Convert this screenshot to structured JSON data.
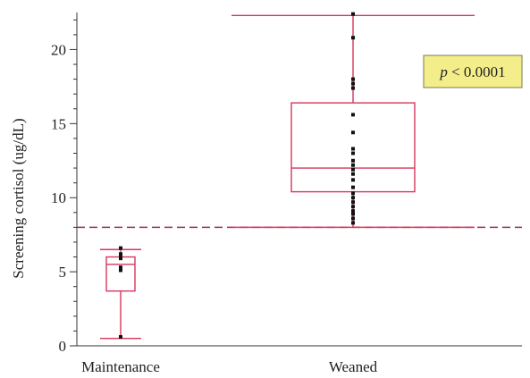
{
  "chart_data": {
    "type": "box",
    "title": "",
    "xlabel": "",
    "ylabel": "Screening cortisol (ug/dL)",
    "ylim": [
      0,
      22.5
    ],
    "yticks": [
      0,
      5,
      10,
      15,
      20
    ],
    "categories": [
      "Maintenance",
      "Weaned"
    ],
    "boxes": [
      {
        "category": "Maintenance",
        "whisker_low": 0.5,
        "q1": 3.7,
        "median": 5.5,
        "q3": 6.0,
        "whisker_high": 6.5,
        "points": [
          0.6,
          5.1,
          5.3,
          5.9,
          6.0,
          6.2,
          6.6
        ]
      },
      {
        "category": "Weaned",
        "whisker_low": 8.0,
        "q1": 10.4,
        "median": 12.0,
        "q3": 16.4,
        "whisker_high": 22.3,
        "points": [
          8.3,
          8.6,
          8.9,
          9.1,
          9.4,
          9.7,
          10.0,
          10.3,
          10.7,
          11.2,
          11.6,
          11.9,
          12.2,
          12.5,
          13.0,
          13.3,
          14.4,
          15.6,
          17.4,
          17.7,
          18.0,
          20.8,
          22.4
        ]
      }
    ],
    "reference_line": {
      "y": 8.0,
      "style": "dashed"
    },
    "annotation": {
      "text": "p < 0.0001",
      "p_italic": "p",
      "rest": " < 0.0001",
      "position": "top-right"
    },
    "grid": false,
    "legend": "none"
  },
  "colors": {
    "box": "#d6365e",
    "reference_line": "#9b2e54",
    "points": "#111111",
    "annotation_bg": "#f4ee8a",
    "annotation_border": "#7a7a50",
    "axis": "#333333"
  }
}
